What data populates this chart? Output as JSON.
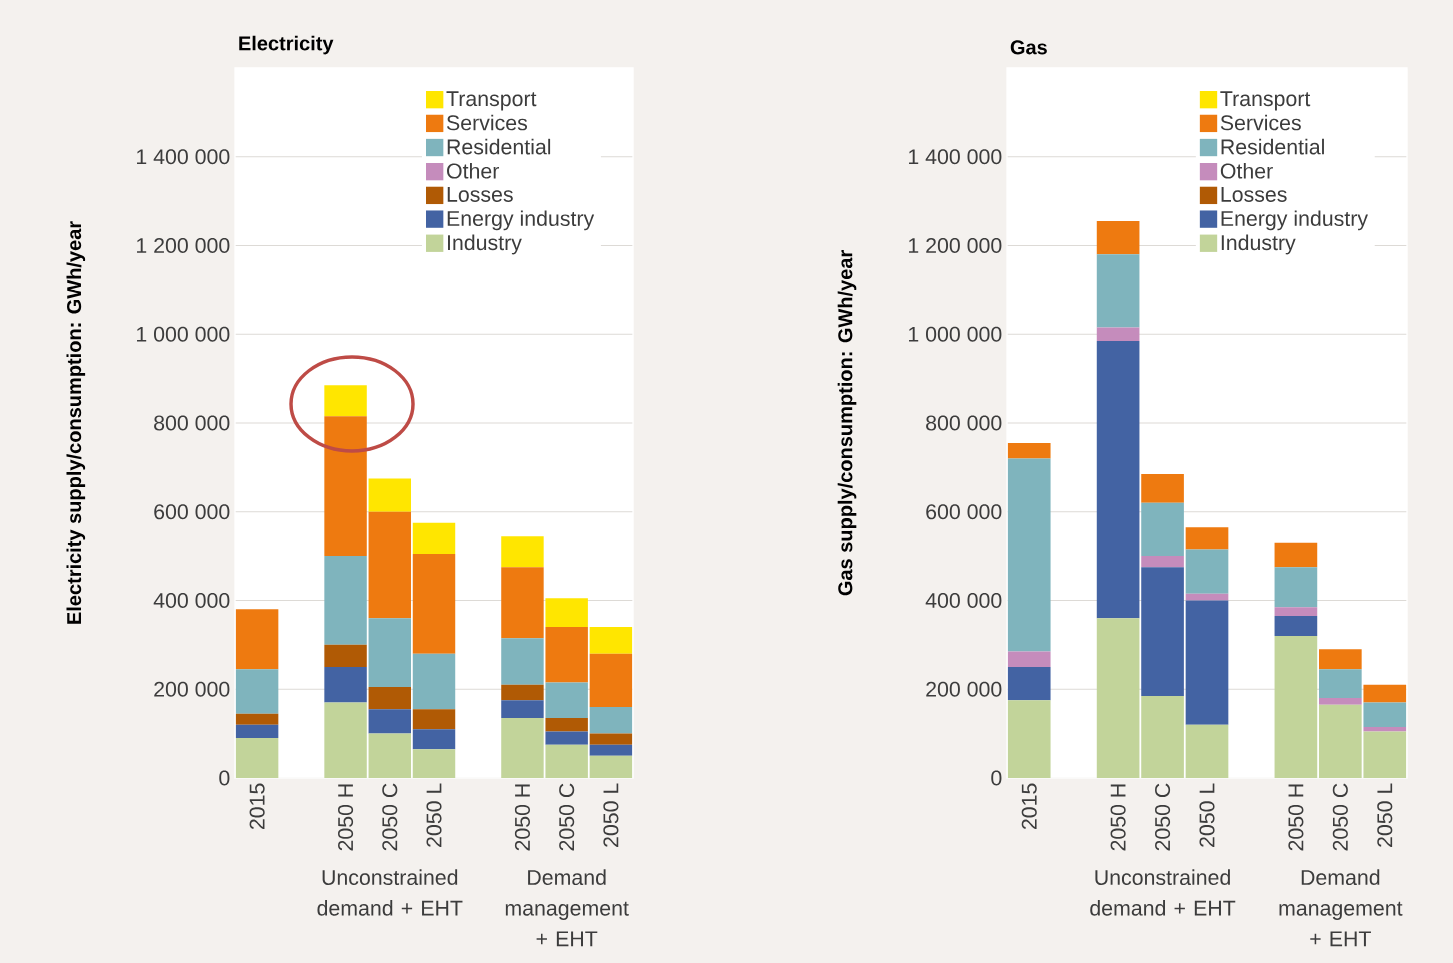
{
  "chart_data": [
    {
      "type": "bar",
      "stacked": true,
      "title": "Electricity",
      "ylabel": "Electricity supply/consumption: GWh/year",
      "categories": [
        "2015",
        null,
        "2050 H",
        "2050 C",
        "2050 L",
        null,
        "2050 H",
        "2050 C",
        "2050 L"
      ],
      "series": [
        {
          "name": "Industry",
          "color": "#c2d49a",
          "values": [
            90000,
            null,
            170000,
            100000,
            65000,
            null,
            135000,
            75000,
            50000
          ]
        },
        {
          "name": "Energy industry",
          "color": "#4363a3",
          "values": [
            30000,
            null,
            80000,
            55000,
            45000,
            null,
            40000,
            30000,
            25000
          ]
        },
        {
          "name": "Losses",
          "color": "#b05a05",
          "values": [
            25000,
            null,
            50000,
            50000,
            45000,
            null,
            35000,
            30000,
            25000
          ]
        },
        {
          "name": "Other",
          "color": "#c58cbc",
          "values": [
            0,
            null,
            0,
            0,
            0,
            null,
            0,
            0,
            0
          ]
        },
        {
          "name": "Residential",
          "color": "#7fb4bd",
          "values": [
            100000,
            null,
            200000,
            155000,
            125000,
            null,
            105000,
            80000,
            60000
          ]
        },
        {
          "name": "Services",
          "color": "#ee7a10",
          "values": [
            135000,
            null,
            315000,
            240000,
            225000,
            null,
            160000,
            125000,
            120000
          ]
        },
        {
          "name": "Transport",
          "color": "#ffe600",
          "values": [
            0,
            null,
            70000,
            75000,
            70000,
            null,
            70000,
            65000,
            60000
          ]
        }
      ],
      "ylim": [
        0,
        1600000
      ],
      "yticks": [
        0,
        {
          "value": 200000,
          "label": "200 000"
        },
        {
          "value": 400000,
          "label": "400 000"
        },
        {
          "value": 600000,
          "label": "600 000"
        },
        {
          "value": 800000,
          "label": "800 000"
        },
        {
          "value": 1000000,
          "label": "1 000 000"
        },
        {
          "value": 1200000,
          "label": "1 200 000"
        },
        {
          "value": 1400000,
          "label": "1 400 000"
        }
      ],
      "grid": "y",
      "legend": "top right",
      "annotations": [
        "Unconstrained demand + EHT",
        "Demand management + EHT"
      ]
    },
    {
      "type": "bar",
      "stacked": true,
      "title": "Gas",
      "ylabel": "Gas supply/consumption: GWh/year",
      "categories": [
        "2015",
        null,
        "2050 H",
        "2050 C",
        "2050 L",
        null,
        "2050 H",
        "2050 C",
        "2050 L"
      ],
      "series": [
        {
          "name": "Industry",
          "color": "#c2d49a",
          "values": [
            175000,
            null,
            360000,
            185000,
            120000,
            null,
            320000,
            165000,
            105000
          ]
        },
        {
          "name": "Energy industry",
          "color": "#4363a3",
          "values": [
            75000,
            null,
            625000,
            290000,
            280000,
            null,
            45000,
            0,
            0
          ]
        },
        {
          "name": "Losses",
          "color": "#b05a05",
          "values": [
            0,
            null,
            0,
            0,
            0,
            null,
            0,
            0,
            0
          ]
        },
        {
          "name": "Other",
          "color": "#c58cbc",
          "values": [
            35000,
            null,
            30000,
            25000,
            15000,
            null,
            20000,
            15000,
            10000
          ]
        },
        {
          "name": "Residential",
          "color": "#7fb4bd",
          "values": [
            435000,
            null,
            165000,
            120000,
            100000,
            null,
            90000,
            65000,
            55000
          ]
        },
        {
          "name": "Services",
          "color": "#ee7a10",
          "values": [
            35000,
            null,
            75000,
            65000,
            50000,
            null,
            55000,
            45000,
            40000
          ]
        },
        {
          "name": "Transport",
          "color": "#ffe600",
          "values": [
            0,
            null,
            0,
            0,
            0,
            null,
            0,
            0,
            0
          ]
        }
      ],
      "ylim": [
        0,
        1600000
      ],
      "yticks": [
        0,
        {
          "value": 200000,
          "label": "200 000"
        },
        {
          "value": 400000,
          "label": "400 000"
        },
        {
          "value": 600000,
          "label": "600 000"
        },
        {
          "value": 800000,
          "label": "800 000"
        },
        {
          "value": 1000000,
          "label": "1 000 000"
        },
        {
          "value": 1200000,
          "label": "1 200 000"
        },
        {
          "value": 1400000,
          "label": "1 400 000"
        }
      ],
      "grid": "y",
      "legend": "top right",
      "annotations": [
        "Unconstrained demand + EHT",
        "Demand management + EHT"
      ]
    }
  ]
}
